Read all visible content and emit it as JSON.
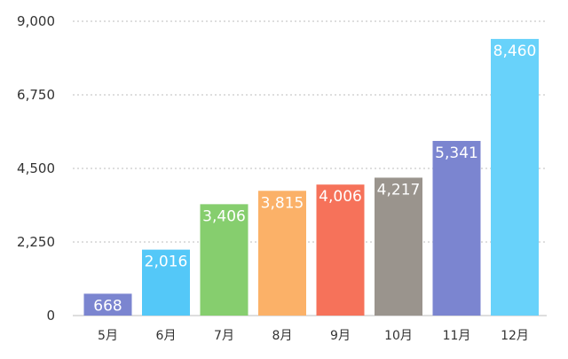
{
  "chart_data": {
    "type": "bar",
    "title": "",
    "xlabel": "",
    "ylabel": "",
    "categories": [
      "5月",
      "6月",
      "7月",
      "8月",
      "9月",
      "10月",
      "11月",
      "12月"
    ],
    "values": [
      668,
      2016,
      3406,
      3815,
      4006,
      4217,
      5341,
      8460
    ],
    "value_labels": [
      "668",
      "2,016",
      "3,406",
      "3,815",
      "4,006",
      "4,217",
      "5,341",
      "8,460"
    ],
    "bar_colors": [
      "#7B85D0",
      "#54C8F8",
      "#86CE6E",
      "#FBB168",
      "#F6725A",
      "#9A948D",
      "#7B85D0",
      "#68D2FA"
    ],
    "ylim": [
      0,
      9000
    ],
    "yticks": [
      0,
      2250,
      4500,
      6750,
      9000
    ],
    "ytick_labels": [
      "0",
      "2,250",
      "4,500",
      "6,750",
      "9,000"
    ],
    "grid": true,
    "legend": "none"
  }
}
